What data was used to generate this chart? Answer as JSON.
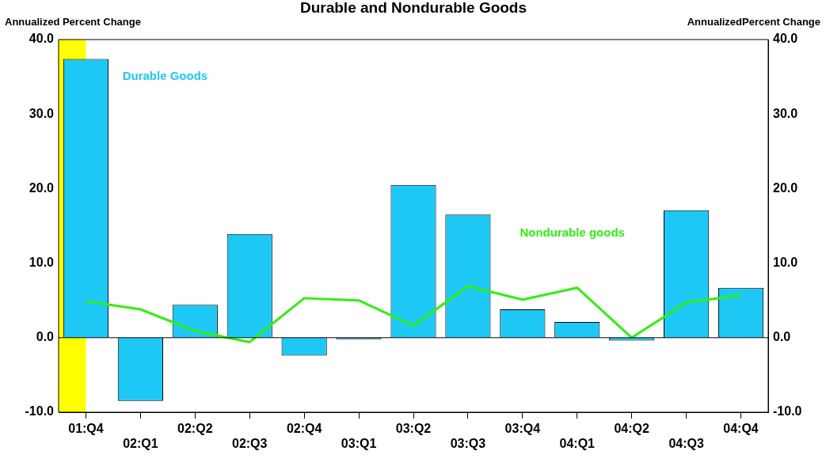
{
  "chart_data": {
    "type": "bar",
    "title": "Durable and Nondurable Goods",
    "ylabel": "Annualized Percent Change",
    "y2label": "AnnualizedPercent Change",
    "categories": [
      "01:Q4",
      "02:Q1",
      "02:Q2",
      "02:Q3",
      "02:Q4",
      "03:Q1",
      "03:Q2",
      "03:Q3",
      "03:Q4",
      "04:Q1",
      "04:Q2",
      "04:Q3",
      "04:Q4"
    ],
    "series": [
      {
        "name": "Durable Goods",
        "color": "#1ec8f5",
        "values": [
          37.4,
          -8.5,
          4.4,
          13.9,
          -2.4,
          -0.2,
          20.5,
          16.5,
          3.8,
          2.1,
          -0.4,
          17.1,
          6.7
        ]
      },
      {
        "name": "Nondurable goods",
        "type": "line",
        "color": "#33ee11",
        "marker": "none",
        "values": [
          4.9,
          3.8,
          0.9,
          -0.6,
          5.3,
          5.0,
          1.6,
          6.9,
          5.1,
          6.7,
          0.0,
          4.7,
          5.7
        ]
      }
    ],
    "ylim": [
      -10,
      40
    ],
    "yticks": [
      {
        "value": -10,
        "label": "-10.0"
      },
      {
        "value": 0,
        "label": "0.0"
      },
      {
        "value": 10,
        "label": "10.0"
      },
      {
        "value": 20,
        "label": "20.0"
      },
      {
        "value": 30,
        "label": "30.0"
      },
      {
        "value": 40,
        "label": "40.0"
      }
    ],
    "y2lim": [
      -10,
      40
    ],
    "y2ticks": [
      {
        "value": -10,
        "label": "-10.0"
      },
      {
        "value": 0,
        "label": "0.0"
      },
      {
        "value": 10,
        "label": "10.0"
      },
      {
        "value": 20,
        "label": "20.0"
      },
      {
        "value": 30,
        "label": "30.0"
      },
      {
        "value": 40,
        "label": "40.0"
      }
    ],
    "bands": [
      {
        "axis": "x",
        "from": "01:Q4",
        "to": "01:Q4",
        "color": "#ffff00"
      }
    ]
  }
}
